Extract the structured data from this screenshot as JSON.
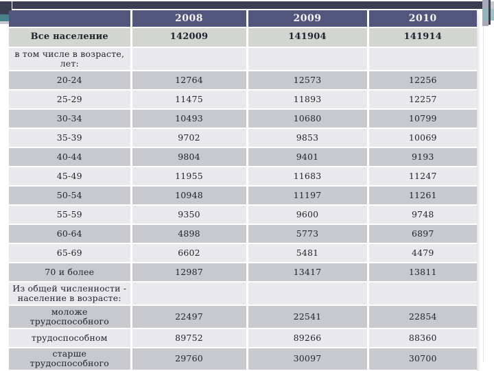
{
  "slide": {
    "table": {
      "columns": [
        "",
        "2008",
        "2009",
        "2010"
      ],
      "rows": [
        {
          "label": "Все население",
          "bold": true,
          "values": [
            "142009",
            "141904",
            "141914"
          ]
        },
        {
          "label": "в том числе в возрасте,\nлет:",
          "values": [
            "",
            "",
            ""
          ]
        },
        {
          "label": "20-24",
          "values": [
            "12764",
            "12573",
            "12256"
          ]
        },
        {
          "label": "25-29",
          "values": [
            "11475",
            "11893",
            "12257"
          ]
        },
        {
          "label": "30-34",
          "values": [
            "10493",
            "10680",
            "10799"
          ]
        },
        {
          "label": "35-39",
          "values": [
            "9702",
            "9853",
            "10069"
          ]
        },
        {
          "label": "40-44",
          "values": [
            "9804",
            "9401",
            "9193"
          ]
        },
        {
          "label": "45-49",
          "values": [
            "11955",
            "11683",
            "11247"
          ]
        },
        {
          "label": "50-54",
          "values": [
            "10948",
            "11197",
            "11261"
          ]
        },
        {
          "label": "55-59",
          "values": [
            "9350",
            "9600",
            "9748"
          ]
        },
        {
          "label": "60-64",
          "values": [
            "4898",
            "5773",
            "6897"
          ]
        },
        {
          "label": "65-69",
          "values": [
            "6602",
            "5481",
            "4479"
          ]
        },
        {
          "label": "70 и более",
          "values": [
            "12987",
            "13417",
            "13811"
          ]
        },
        {
          "label": "Из общей численности -\nнаселение в возрасте:",
          "values": [
            "",
            "",
            ""
          ]
        },
        {
          "label": "моложе\nтрудоспособного",
          "values": [
            "22497",
            "22541",
            "22854"
          ]
        },
        {
          "label": "трудоспособном",
          "values": [
            "89752",
            "89266",
            "88360"
          ]
        },
        {
          "label": "старше трудоспособного",
          "values": [
            "29760",
            "30097",
            "30700"
          ]
        }
      ]
    }
  },
  "colors": {
    "top-bar": "#3b3e50",
    "header-bg": "#53567c",
    "header-text": "#f4f2ee",
    "row-gray": "#c8c8cf",
    "row-light": "#e8e8ed",
    "first-row": "#d3d5d1",
    "cell-text": "#23242e",
    "accent-teal": "#47828a",
    "accent-teal-light": "#8fb6ba",
    "accent-lavender": "#a9a7b8",
    "faint-line": "#e2e2e7"
  }
}
